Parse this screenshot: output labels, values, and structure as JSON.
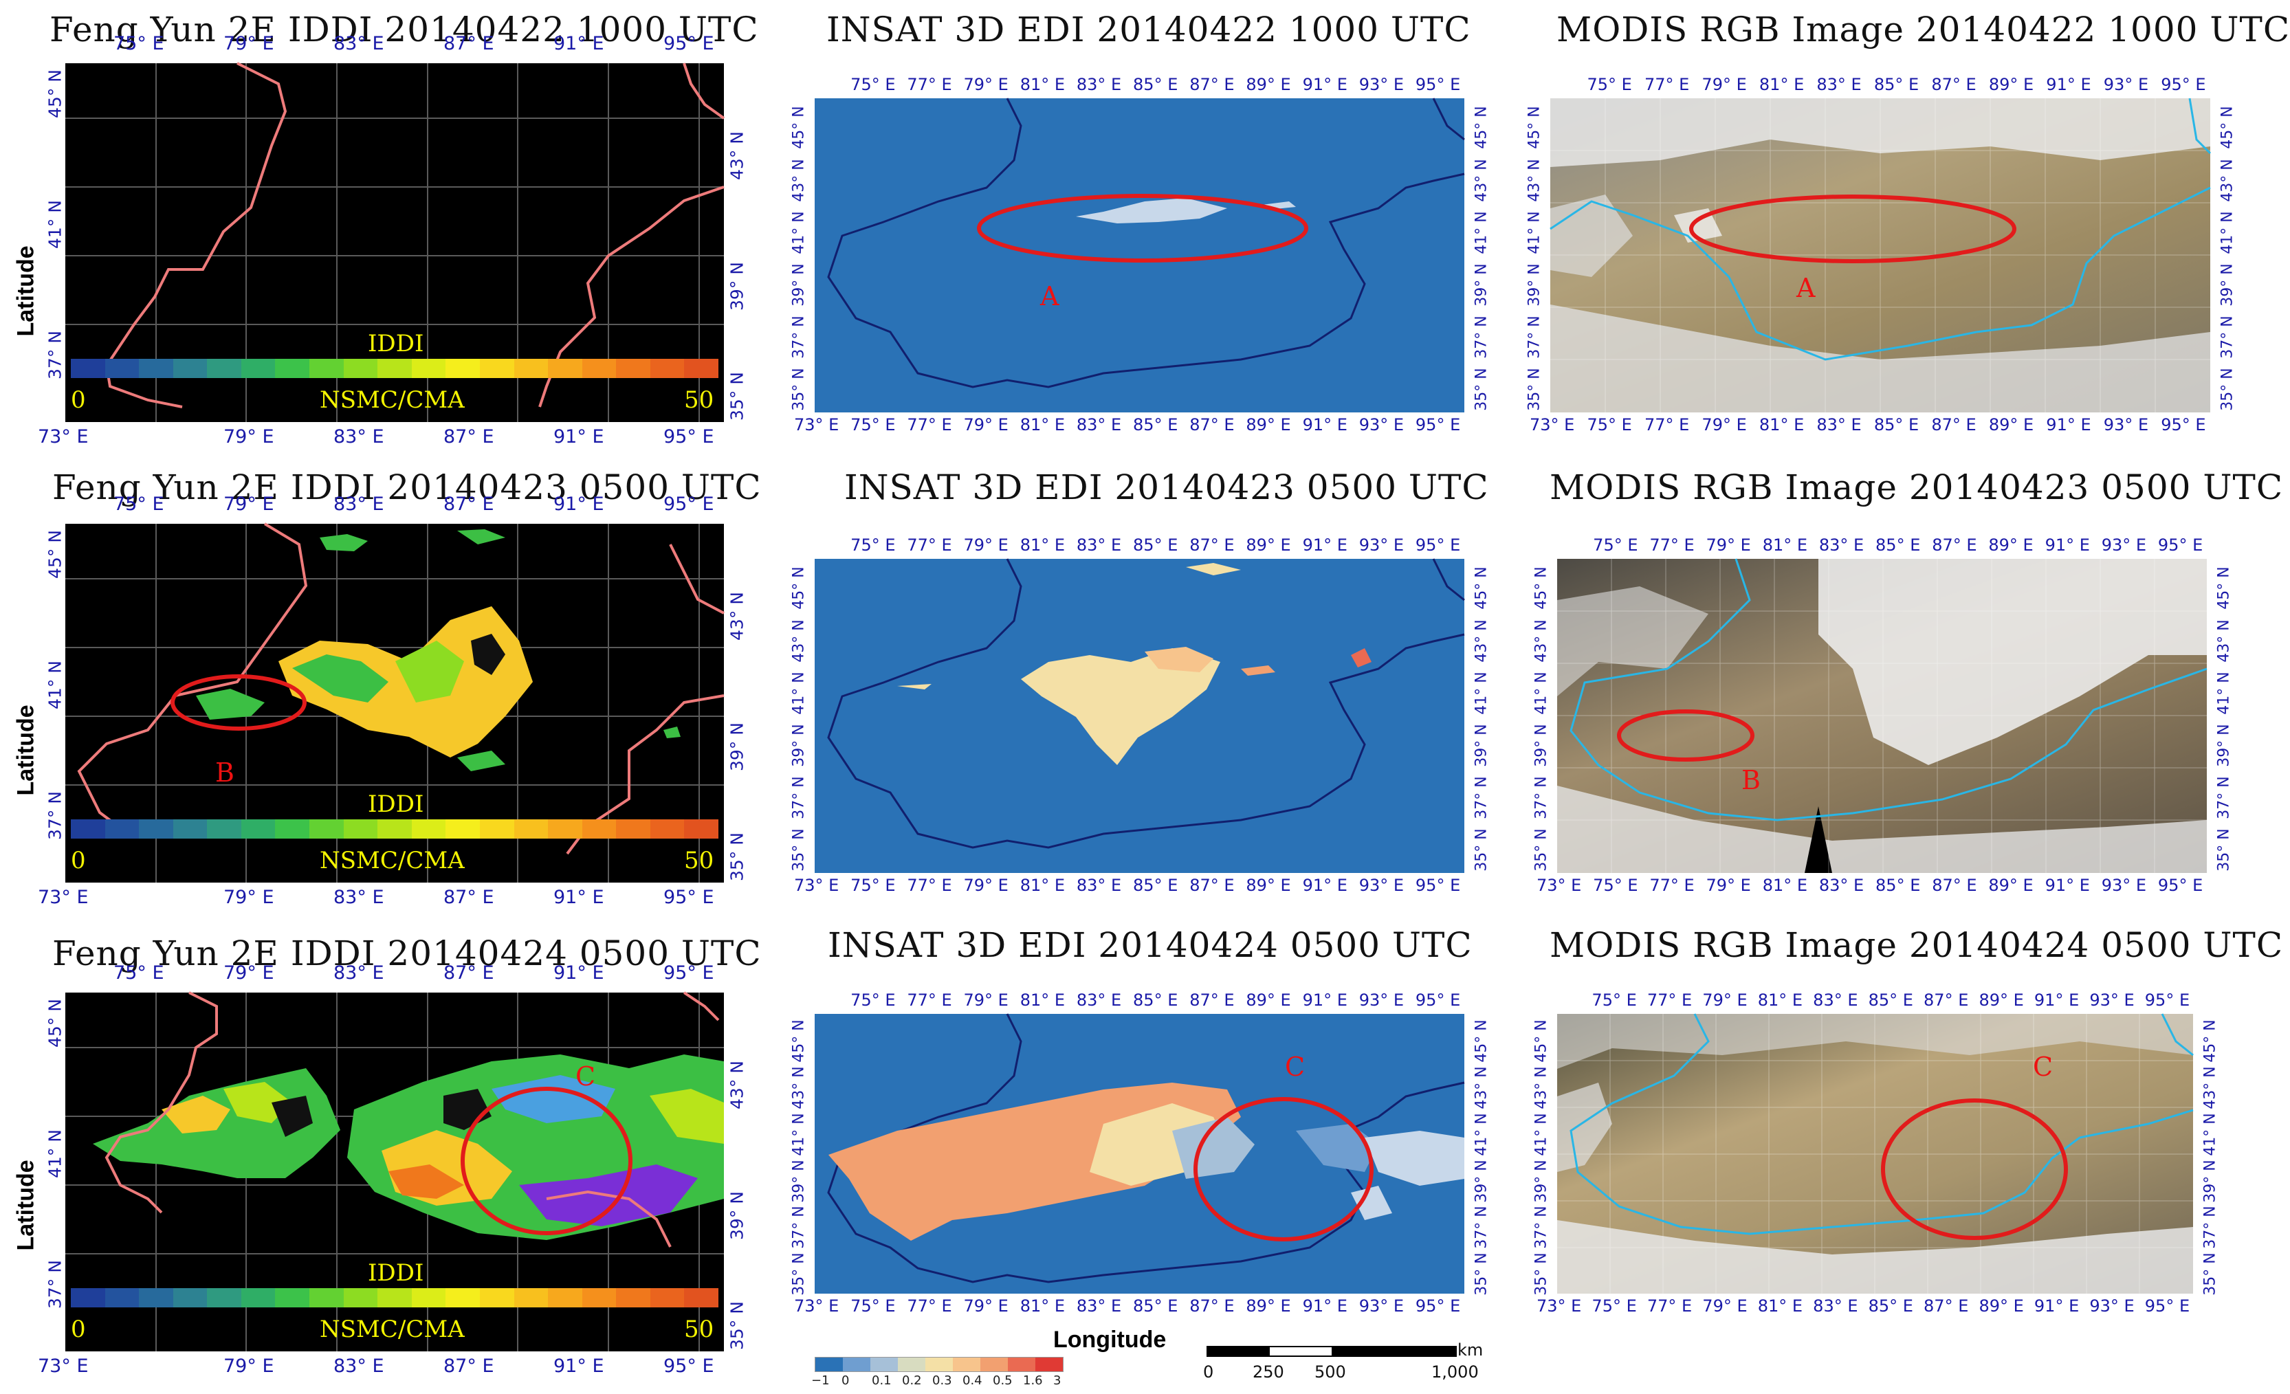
{
  "titles": {
    "fy1": "Feng Yun 2E IDDI 20140422 1000 UTC",
    "in1": "INSAT 3D EDI 20140422 1000 UTC",
    "mo1": "MODIS RGB Image 20140422 1000 UTC",
    "fy2": "Feng Yun 2E IDDI 20140423 0500 UTC",
    "in2": "INSAT 3D EDI 20140423 0500 UTC",
    "mo2": "MODIS RGB Image 20140423 0500 UTC",
    "fy3": "Feng Yun 2E IDDI 20140424 0500 UTC",
    "in3": "INSAT 3D EDI 20140424 0500 UTC",
    "mo3": "MODIS RGB Image 20140424 0500 UTC"
  },
  "axes": {
    "latitude": "Latitude",
    "longitude": "Longitude",
    "fy_top_lons": [
      "75° E",
      "79° E",
      "83° E",
      "87° E",
      "91° E",
      "95° E"
    ],
    "fy_bottom_lons": [
      "73° E",
      "79° E",
      "83° E",
      "87° E",
      "91° E",
      "95° E"
    ],
    "fy_left_lats": [
      "45° N",
      "41° N",
      "37° N"
    ],
    "fy_right_lats": [
      "43° N",
      "39° N",
      "35° N"
    ],
    "grid_lons": [
      "73° E",
      "75° E",
      "77° E",
      "79° E",
      "81° E",
      "83° E",
      "85° E",
      "87° E",
      "89° E",
      "91° E",
      "93° E",
      "95° E"
    ],
    "grid_top_lons": [
      "75° E",
      "77° E",
      "79° E",
      "81° E",
      "83° E",
      "85° E",
      "87° E",
      "89° E",
      "91° E",
      "93° E",
      "95° E"
    ],
    "grid_lats": [
      "35° N",
      "37° N",
      "39° N",
      "41° N",
      "43° N",
      "45° N"
    ]
  },
  "colorbar": {
    "title": "IDDI",
    "source": "NSMC/CMA",
    "min": "0",
    "max": "50",
    "colors": [
      "#1f3f9a",
      "#23539e",
      "#276a9c",
      "#2d8292",
      "#2f9a80",
      "#2fae66",
      "#3cc24a",
      "#63d132",
      "#8ddc22",
      "#b8e41a",
      "#dced18",
      "#f5ee1c",
      "#f9d81e",
      "#f8c01e",
      "#f7a81d",
      "#f5901c",
      "#f0781c",
      "#ea641e",
      "#e2531f"
    ]
  },
  "edi_legend": {
    "ticks": [
      "−1",
      "0",
      "0.1",
      "0.2",
      "0.3",
      "0.4",
      "0.5",
      "1.6",
      "3"
    ],
    "colors": [
      "#2a72b6",
      "#6f9ed0",
      "#a6c0d8",
      "#d8dcc0",
      "#f4e0a6",
      "#f7c48c",
      "#f2a070",
      "#ea6a52",
      "#e03a34"
    ]
  },
  "scale_bar": {
    "unit": "km",
    "labels": [
      "0",
      "250",
      "500",
      "1,000"
    ]
  },
  "regions": {
    "a": "A",
    "b": "B",
    "c": "C"
  },
  "colors": {
    "fy_bg": "#000000",
    "boundary_fy": "#ee7b7b",
    "edi_bg": "#2a72b6",
    "boundary_edi": "#111f6e",
    "circle": "#e21b1b",
    "axis_text": "#1a1aa8",
    "modis_boundary": "#29b6e6"
  }
}
